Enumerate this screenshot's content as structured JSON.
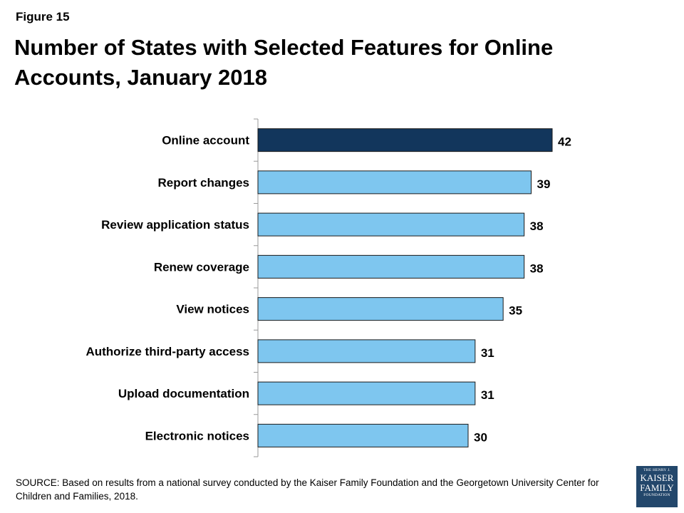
{
  "figure_label": "Figure 15",
  "title": "Number of States with Selected Features for Online Accounts, January 2018",
  "source": "SOURCE: Based on results from a national survey conducted by the Kaiser Family Foundation and the Georgetown University Center for Children and Families, 2018.",
  "logo": {
    "line1": "THE HENRY J.",
    "line2": "KAISER",
    "line3": "FAMILY",
    "line4": "FOUNDATION"
  },
  "colors": {
    "highlight_bar": "#12365c",
    "bar": "#7ec6ef",
    "bar_stroke": "#1a1a1a",
    "axis": "#999999",
    "logo_bg": "#23476b"
  },
  "chart_data": {
    "type": "bar",
    "orientation": "horizontal",
    "categories": [
      "Online account",
      "Report changes",
      "Review application status",
      "Renew coverage",
      "View notices",
      "Authorize third-party access",
      "Upload documentation",
      "Electronic notices"
    ],
    "values": [
      42,
      39,
      38,
      38,
      35,
      31,
      31,
      30
    ],
    "highlighted_index": 0,
    "xlim": [
      0,
      50
    ],
    "grid": false,
    "legend": "none",
    "data_labels": true
  }
}
